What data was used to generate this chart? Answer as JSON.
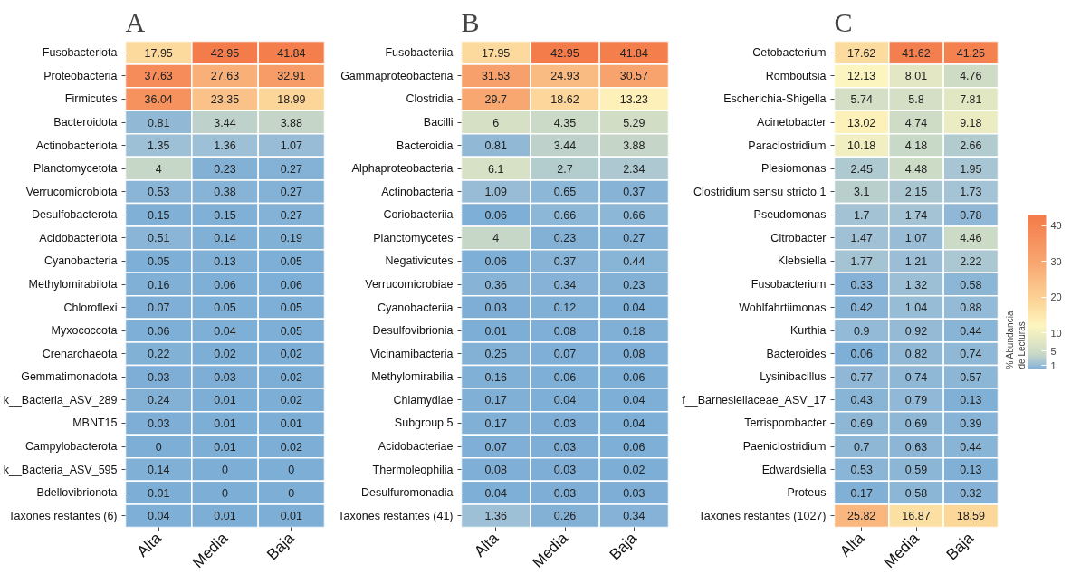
{
  "chart_data": [
    {
      "type": "heatmap",
      "title": "A",
      "categories": [
        "Alta",
        "Media",
        "Baja"
      ],
      "y_categories": [
        "Fusobacteriota",
        "Proteobacteria",
        "Firmicutes",
        "Bacteroidota",
        "Actinobacteriota",
        "Planctomycetota",
        "Verrucomicrobiota",
        "Desulfobacterota",
        "Acidobacteriota",
        "Cyanobacteria",
        "Methylomirabilota",
        "Chloroflexi",
        "Myxococcota",
        "Crenarchaeota",
        "Gemmatimonadota",
        "k__Bacteria_ASV_289",
        "MBNT15",
        "Campylobacterota",
        "k__Bacteria_ASV_595",
        "Bdellovibrionota",
        "Taxones restantes (6)"
      ],
      "cells": [
        [
          17.95,
          42.95,
          41.84
        ],
        [
          37.63,
          27.63,
          32.91
        ],
        [
          36.04,
          23.35,
          18.99
        ],
        [
          0.81,
          3.44,
          3.88
        ],
        [
          1.35,
          1.36,
          1.07
        ],
        [
          4,
          0.23,
          0.27
        ],
        [
          0.53,
          0.38,
          0.27
        ],
        [
          0.15,
          0.15,
          0.27
        ],
        [
          0.51,
          0.14,
          0.19
        ],
        [
          0.05,
          0.13,
          0.05
        ],
        [
          0.16,
          0.06,
          0.06
        ],
        [
          0.07,
          0.05,
          0.05
        ],
        [
          0.06,
          0.04,
          0.05
        ],
        [
          0.22,
          0.02,
          0.02
        ],
        [
          0.03,
          0.03,
          0.02
        ],
        [
          0.24,
          0.01,
          0.02
        ],
        [
          0.03,
          0.01,
          0.01
        ],
        [
          0,
          0.01,
          0.02
        ],
        [
          0.14,
          0,
          0
        ],
        [
          0.01,
          0,
          0
        ],
        [
          0.04,
          0.01,
          0.01
        ]
      ],
      "data_labels": true
    },
    {
      "type": "heatmap",
      "title": "B",
      "categories": [
        "Alta",
        "Media",
        "Baja"
      ],
      "y_categories": [
        "Fusobacteriia",
        "Gammaproteobacteria",
        "Clostridia",
        "Bacilli",
        "Bacteroidia",
        "Alphaproteobacteria",
        "Actinobacteria",
        "Coriobacteriia",
        "Planctomycetes",
        "Negativicutes",
        "Verrucomicrobiae",
        "Cyanobacteriia",
        "Desulfovibrionia",
        "Vicinamibacteria",
        "Methylomirabilia",
        "Chlamydiae",
        "Subgroup 5",
        "Acidobacteriae",
        "Thermoleophilia",
        "Desulfuromonadia",
        "Taxones restantes (41)"
      ],
      "cells": [
        [
          17.95,
          42.95,
          41.84
        ],
        [
          31.53,
          24.93,
          30.57
        ],
        [
          29.7,
          18.62,
          13.23
        ],
        [
          6,
          4.35,
          5.29
        ],
        [
          0.81,
          3.44,
          3.88
        ],
        [
          6.1,
          2.7,
          2.34
        ],
        [
          1.09,
          0.65,
          0.37
        ],
        [
          0.06,
          0.66,
          0.66
        ],
        [
          4,
          0.23,
          0.27
        ],
        [
          0.06,
          0.37,
          0.44
        ],
        [
          0.36,
          0.34,
          0.23
        ],
        [
          0.03,
          0.12,
          0.04
        ],
        [
          0.01,
          0.08,
          0.18
        ],
        [
          0.25,
          0.07,
          0.08
        ],
        [
          0.16,
          0.06,
          0.06
        ],
        [
          0.17,
          0.04,
          0.04
        ],
        [
          0.17,
          0.03,
          0.04
        ],
        [
          0.07,
          0.03,
          0.06
        ],
        [
          0.08,
          0.03,
          0.02
        ],
        [
          0.04,
          0.03,
          0.03
        ],
        [
          1.36,
          0.26,
          0.34
        ]
      ],
      "data_labels": true
    },
    {
      "type": "heatmap",
      "title": "C",
      "categories": [
        "Alta",
        "Media",
        "Baja"
      ],
      "y_categories": [
        "Cetobacterium",
        "Romboutsia",
        "Escherichia-Shigella",
        "Acinetobacter",
        "Paraclostridium",
        "Plesiomonas",
        "Clostridium sensu stricto 1",
        "Pseudomonas",
        "Citrobacter",
        "Klebsiella",
        "Fusobacterium",
        "Wohlfahrtiimonas",
        "Kurthia",
        "Bacteroides",
        "Lysinibacillus",
        "f__Barnesiellaceae_ASV_17",
        "Terrisporobacter",
        "Paeniclostridium",
        "Edwardsiella",
        "Proteus",
        "Taxones restantes (1027)"
      ],
      "cells": [
        [
          17.62,
          41.62,
          41.25
        ],
        [
          12.13,
          8.01,
          4.76
        ],
        [
          5.74,
          5.8,
          7.81
        ],
        [
          13.02,
          4.74,
          9.18
        ],
        [
          10.18,
          4.18,
          2.66
        ],
        [
          2.45,
          4.48,
          1.95
        ],
        [
          3.1,
          2.15,
          1.73
        ],
        [
          1.7,
          1.74,
          0.78
        ],
        [
          1.47,
          1.07,
          4.46
        ],
        [
          1.77,
          1.21,
          2.22
        ],
        [
          0.33,
          1.32,
          0.58
        ],
        [
          0.42,
          1.04,
          0.88
        ],
        [
          0.9,
          0.92,
          0.44
        ],
        [
          0.06,
          0.82,
          0.74
        ],
        [
          0.77,
          0.74,
          0.57
        ],
        [
          0.43,
          0.79,
          0.13
        ],
        [
          0.69,
          0.69,
          0.39
        ],
        [
          0.7,
          0.63,
          0.44
        ],
        [
          0.53,
          0.59,
          0.13
        ],
        [
          0.17,
          0.58,
          0.32
        ],
        [
          25.82,
          16.87,
          18.59
        ]
      ],
      "data_labels": true,
      "clabel": "% Abundancia de Lecturas",
      "clim": [
        0,
        42.95
      ],
      "cticks": [
        1,
        5,
        10,
        20,
        30,
        40
      ]
    }
  ]
}
